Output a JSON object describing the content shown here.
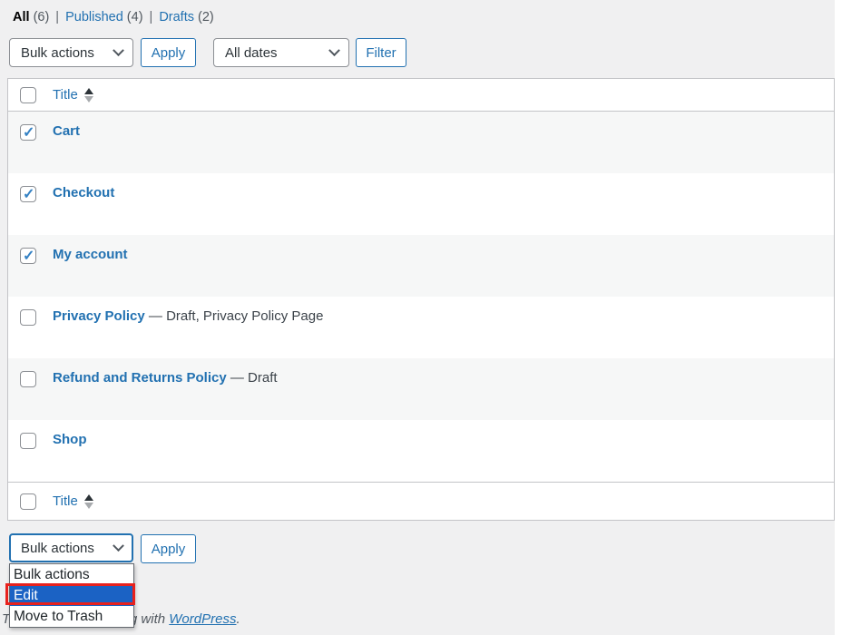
{
  "filters": {
    "all": {
      "label": "All",
      "count": "(6)"
    },
    "published": {
      "label": "Published",
      "count": "(4)"
    },
    "drafts": {
      "label": "Drafts",
      "count": "(2)"
    },
    "separator": "|"
  },
  "toolbar_top": {
    "bulk_select_value": "Bulk actions",
    "apply_label": "Apply",
    "dates_select_value": "All dates",
    "filter_label": "Filter"
  },
  "table": {
    "header_title": "Title",
    "footer_title": "Title",
    "rows": [
      {
        "title": "Cart",
        "suffix": "",
        "checked": true
      },
      {
        "title": "Checkout",
        "suffix": "",
        "checked": true
      },
      {
        "title": "My account",
        "suffix": "",
        "checked": true
      },
      {
        "title": "Privacy Policy",
        "suffix": " — Draft, Privacy Policy Page",
        "checked": false
      },
      {
        "title": "Refund and Returns Policy",
        "suffix": " — Draft",
        "checked": false
      },
      {
        "title": "Shop",
        "suffix": "",
        "checked": false
      }
    ]
  },
  "toolbar_bottom": {
    "bulk_select_value": "Bulk actions",
    "apply_label": "Apply"
  },
  "bulk_dropdown": {
    "options": [
      {
        "label": "Bulk actions",
        "selected": false
      },
      {
        "label": "Edit",
        "selected": true
      },
      {
        "label": "Move to Trash",
        "selected": false
      }
    ]
  },
  "footer": {
    "text_before_link": "Thank you for creating with ",
    "link_label": "WordPress",
    "text_after_link": "."
  },
  "colors": {
    "accent": "#2271b1",
    "selection_highlight": "#1b62c4",
    "annotation_red": "#e8211d",
    "page_background": "#f0f0f1",
    "alt_row": "#f6f7f7",
    "table_border": "#c3c4c7"
  }
}
